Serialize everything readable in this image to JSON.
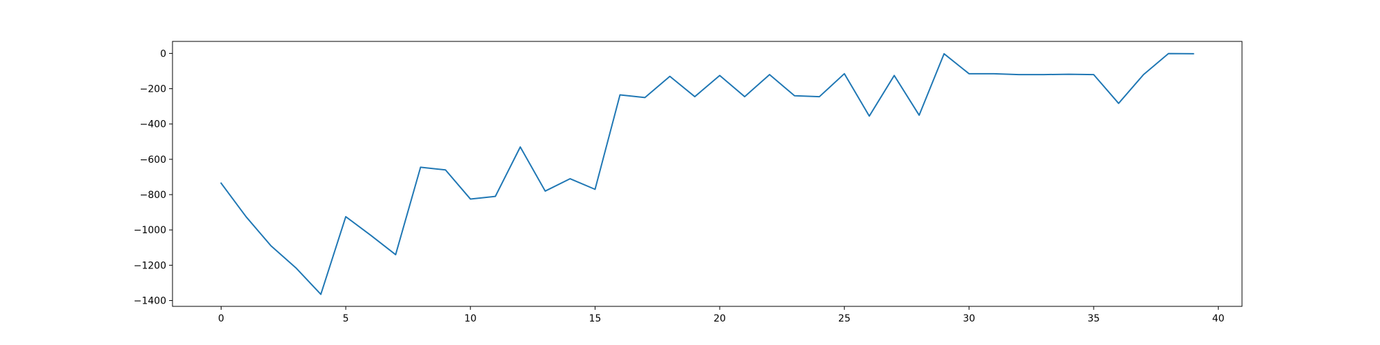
{
  "chart_data": {
    "type": "line",
    "x": [
      0,
      1,
      2,
      3,
      4,
      5,
      6,
      7,
      8,
      9,
      10,
      11,
      12,
      13,
      14,
      15,
      16,
      17,
      18,
      19,
      20,
      21,
      22,
      23,
      24,
      25,
      26,
      27,
      28,
      29,
      30,
      31,
      32,
      33,
      34,
      35,
      36,
      37,
      38,
      39
    ],
    "series": [
      {
        "values": [
          -735,
          -925,
          -1090,
          -1215,
          -1365,
          -925,
          -1030,
          -1140,
          -645,
          -660,
          -825,
          -810,
          -530,
          -780,
          -710,
          -770,
          -235,
          -250,
          -130,
          -245,
          -125,
          -245,
          -120,
          -240,
          -245,
          -115,
          -355,
          -125,
          -350,
          -2,
          -115,
          -115,
          -120,
          -120,
          -118,
          -120,
          -283,
          -120,
          -1,
          -2
        ],
        "color": "#1f77b4"
      }
    ],
    "xlim": [
      -1.95,
      40.95
    ],
    "ylim": [
      -1433,
      68
    ],
    "xticks": [
      0,
      5,
      10,
      15,
      20,
      25,
      30,
      35,
      40
    ],
    "yticks": [
      0,
      -200,
      -400,
      -600,
      -800,
      -1000,
      -1200,
      -1400
    ],
    "xtick_labels": [
      "0",
      "5",
      "10",
      "15",
      "20",
      "25",
      "30",
      "35",
      "40"
    ],
    "ytick_labels": [
      "0",
      "−200",
      "−400",
      "−600",
      "−800",
      "−1000",
      "−1200",
      "−1400"
    ],
    "title": "",
    "xlabel": "",
    "ylabel": "",
    "grid": false,
    "legend": false
  }
}
